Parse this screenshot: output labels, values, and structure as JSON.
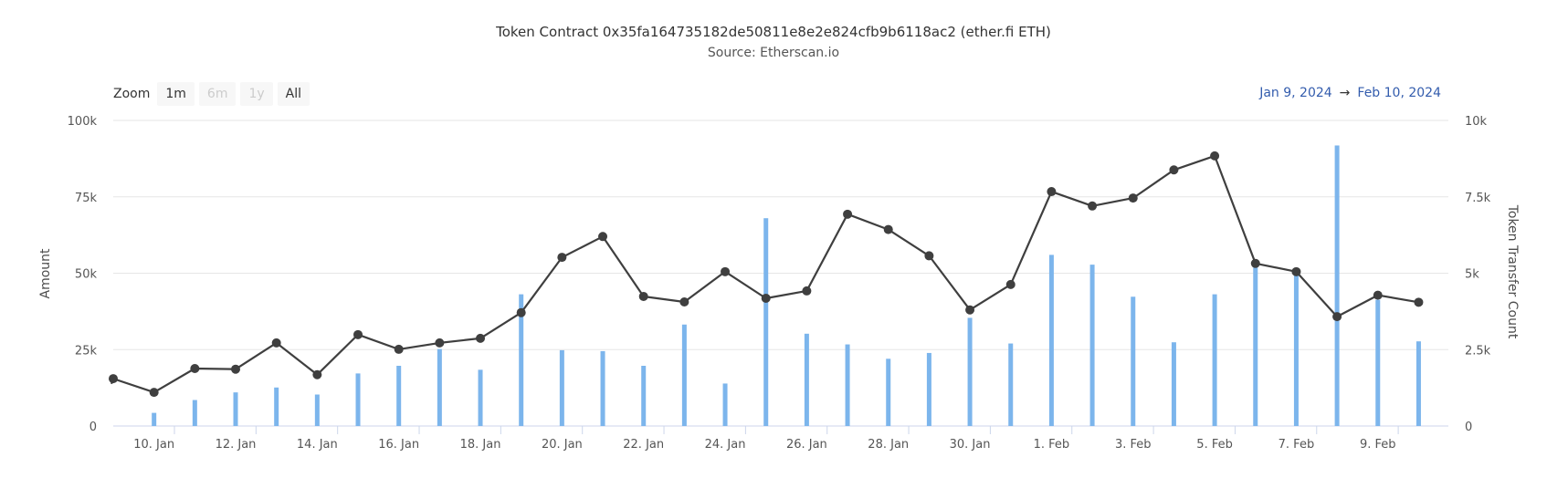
{
  "header": {
    "title": "Token Contract 0x35fa164735182de50811e8e2e824cfb9b6118ac2 (ether.fi ETH)",
    "subtitle": "Source: Etherscan.io"
  },
  "zoom": {
    "label": "Zoom",
    "buttons": [
      {
        "label": "1m",
        "enabled": true
      },
      {
        "label": "6m",
        "enabled": false
      },
      {
        "label": "1y",
        "enabled": false
      },
      {
        "label": "All",
        "enabled": true,
        "selected": true
      }
    ]
  },
  "range": {
    "from": "Jan 9, 2024",
    "arrow": "→",
    "to": "Feb 10, 2024"
  },
  "chart_data": {
    "type": "bar+line",
    "grid": true,
    "x": [
      "2024-01-09",
      "2024-01-10",
      "2024-01-11",
      "2024-01-12",
      "2024-01-13",
      "2024-01-14",
      "2024-01-15",
      "2024-01-16",
      "2024-01-17",
      "2024-01-18",
      "2024-01-19",
      "2024-01-20",
      "2024-01-21",
      "2024-01-22",
      "2024-01-23",
      "2024-01-24",
      "2024-01-25",
      "2024-01-26",
      "2024-01-27",
      "2024-01-28",
      "2024-01-29",
      "2024-01-30",
      "2024-01-31",
      "2024-02-01",
      "2024-02-02",
      "2024-02-03",
      "2024-02-04",
      "2024-02-05",
      "2024-02-06",
      "2024-02-07",
      "2024-02-08",
      "2024-02-09",
      "2024-02-10"
    ],
    "x_tick_labels": [
      "10. Jan",
      "12. Jan",
      "14. Jan",
      "16. Jan",
      "18. Jan",
      "20. Jan",
      "22. Jan",
      "24. Jan",
      "26. Jan",
      "28. Jan",
      "30. Jan",
      "1. Feb",
      "3. Feb",
      "5. Feb",
      "7. Feb",
      "9. Feb"
    ],
    "y_left": {
      "label": "Amount",
      "range": [
        0,
        100000
      ],
      "ticks": [
        "0",
        "25k",
        "50k",
        "75k",
        "100k"
      ]
    },
    "y_right": {
      "label": "Token Transfer Count",
      "range": [
        0,
        10000
      ],
      "ticks": [
        "0",
        "2.5k",
        "5k",
        "7.5k",
        "10k"
      ]
    },
    "series": [
      {
        "type": "column",
        "axis": "left",
        "color": "#7cb5ec",
        "values": [
          0,
          4300,
          8500,
          11000,
          12600,
          10300,
          17200,
          19700,
          25200,
          18400,
          43100,
          24800,
          24500,
          19700,
          33200,
          13900,
          68000,
          30200,
          26700,
          22000,
          23900,
          35400,
          27000,
          56000,
          52800,
          42300,
          27400,
          43100,
          51800,
          50100,
          91800,
          41300,
          27700
        ]
      },
      {
        "type": "line",
        "axis": "right",
        "color": "#3f3f3f",
        "values": [
          1550,
          1100,
          1880,
          1860,
          2720,
          1680,
          2990,
          2510,
          2720,
          2870,
          3710,
          5520,
          6200,
          4240,
          4060,
          5050,
          4180,
          4420,
          6930,
          6430,
          5570,
          3800,
          4630,
          7670,
          7200,
          7460,
          8380,
          8840,
          5320,
          5050,
          3580,
          4280,
          4050
        ]
      }
    ]
  }
}
